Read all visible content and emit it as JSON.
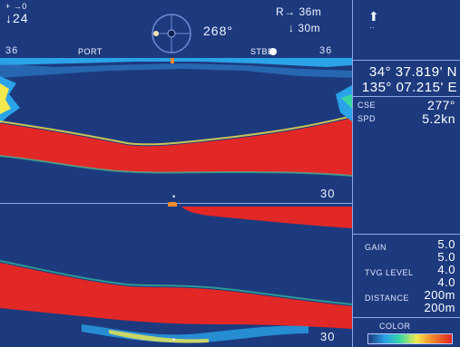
{
  "top": {
    "left_arrow_label": "+ →0",
    "left_depth_label": "↓24",
    "heading": "268°",
    "right_range_label": "R→ 36m",
    "right_depth_label": "↓ 30m",
    "range_left": "36",
    "port_label": "PORT",
    "stbd_label": "STBD",
    "range_right": "36"
  },
  "sidebar": {
    "north_marker": "⬆",
    "latitude": "34° 37.819' N",
    "longitude": "135° 07.215' E",
    "cse_label": "CSE",
    "cse_value": "277°",
    "spd_label": "SPD",
    "spd_value": "5.2kn",
    "gain_label": "GAIN",
    "gain_values": [
      "5.0",
      "5.0"
    ],
    "tvg_label": "TVG LEVEL",
    "tvg_values": [
      "4.0",
      "4.0"
    ],
    "distance_label": "DISTANCE",
    "distance_values": [
      "200m",
      "200m"
    ],
    "color_label": "COLOR"
  },
  "echo": {
    "upper_scale_label": "30",
    "lower_scale_label": "30",
    "mid_marker": "•",
    "bottom_marker": "•"
  },
  "colors": {
    "background": "#1d3a7e",
    "seabed": "#e22727",
    "accent": "#8ea8e6"
  }
}
